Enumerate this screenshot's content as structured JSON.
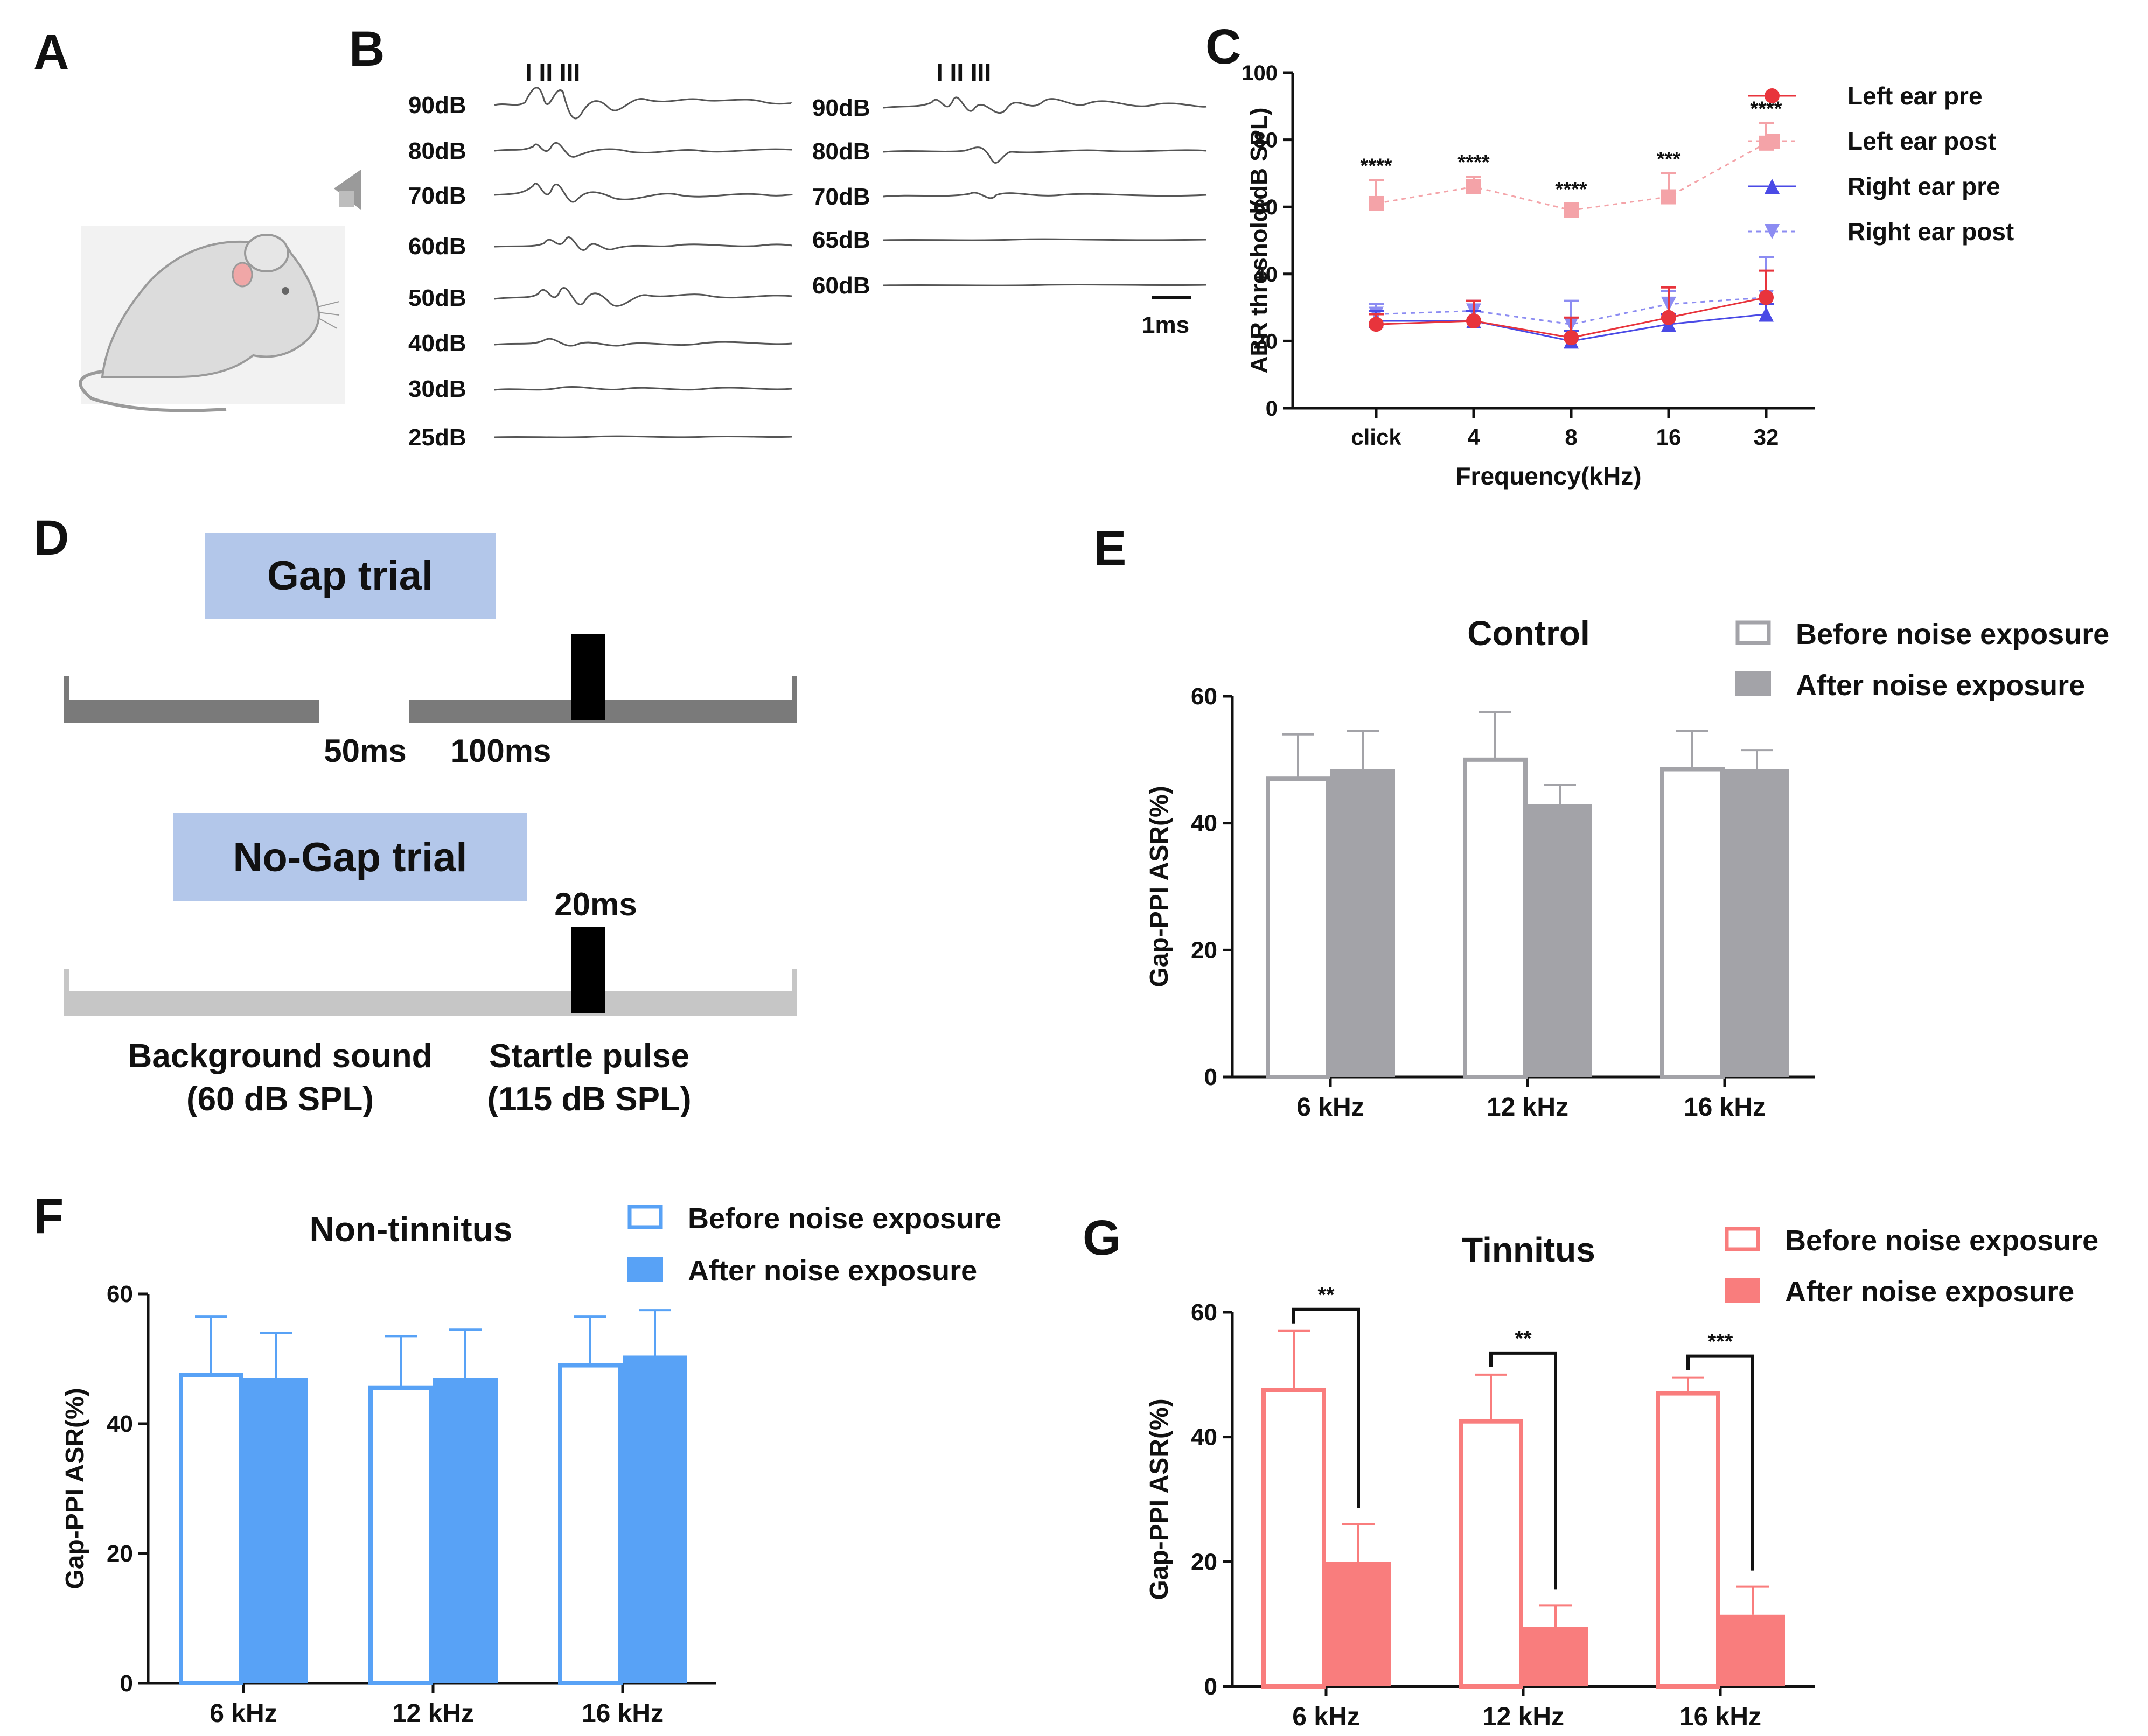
{
  "panel_labels": {
    "a": "A",
    "b": "B",
    "c": "C",
    "d": "D",
    "e": "E",
    "f": "F",
    "g": "G"
  },
  "abr_traces": {
    "peaks_label": "I  II  III",
    "scale_bar_label": "1ms",
    "pre_levels": [
      "90dB",
      "80dB",
      "70dB",
      "60dB",
      "50dB",
      "40dB",
      "30dB",
      "25dB"
    ],
    "post_levels": [
      "90dB",
      "80dB",
      "70dB",
      "65dB",
      "60dB"
    ]
  },
  "gap_paradigm": {
    "gap_trial_label": "Gap trial",
    "gap_duration_label": "50ms",
    "gap_delay_label": "100ms",
    "nogap_trial_label": "No-Gap trial",
    "pulse_duration_label": "20ms",
    "background_label": "Background sound",
    "background_level": "(60 dB SPL)",
    "startle_label": "Startle pulse",
    "startle_level": "(115 dB SPL)"
  },
  "colors": {
    "left_pre": "#e8343c",
    "left_post": "#f4a3a8",
    "right_pre": "#4a4ae6",
    "right_post": "#8c8cf2",
    "control_after": "#a3a3a8",
    "control_before_edge": "#a3a3a8",
    "nontinnitus": "#58a2f6",
    "tinnitus": "#f97d7d",
    "gap_bar_dark": "#7a7a7a",
    "nogap_bar": "#c6c6c6",
    "trial_box": "#b3c7ea"
  },
  "chart_data": [
    {
      "panel": "C",
      "type": "line",
      "title": "",
      "xlabel": "Frequency(kHz)",
      "ylabel": "ABR threshold(dB SPL)",
      "ylim": [
        0,
        100
      ],
      "yticks": [
        0,
        20,
        40,
        60,
        80,
        100
      ],
      "categories": [
        "click",
        "4",
        "8",
        "16",
        "32"
      ],
      "series": [
        {
          "name": "Left ear pre",
          "values": [
            25,
            26,
            21,
            27,
            33
          ],
          "error": [
            3,
            6,
            6,
            9,
            8
          ]
        },
        {
          "name": "Left ear post",
          "values": [
            61,
            66,
            59,
            63,
            79
          ],
          "error": [
            7,
            3,
            2,
            7,
            6
          ]
        },
        {
          "name": "Right ear pre",
          "values": [
            26,
            26,
            20,
            25,
            28
          ],
          "error": [
            3,
            3,
            3,
            3,
            3
          ]
        },
        {
          "name": "Right ear post",
          "values": [
            28,
            29,
            25,
            31,
            33
          ],
          "error": [
            3,
            3,
            7,
            4,
            12
          ]
        }
      ],
      "annotations": [
        "****",
        "****",
        "****",
        "***",
        "****"
      ],
      "legend": "top-right"
    },
    {
      "panel": "E",
      "type": "bar",
      "title": "Control",
      "xlabel": "",
      "ylabel": "Gap-PPI ASR(%)",
      "ylim": [
        0,
        60
      ],
      "yticks": [
        0,
        20,
        40,
        60
      ],
      "categories": [
        "6 kHz",
        "12 kHz",
        "16 kHz"
      ],
      "series": [
        {
          "name": "Before noise exposure",
          "values": [
            47,
            50,
            48.5
          ],
          "error": [
            7,
            7.5,
            6
          ]
        },
        {
          "name": "After noise exposure",
          "values": [
            48.5,
            43,
            48.5
          ],
          "error": [
            6,
            3,
            3
          ]
        }
      ],
      "legend": "top-right"
    },
    {
      "panel": "F",
      "type": "bar",
      "title": "Non-tinnitus",
      "xlabel": "",
      "ylabel": "Gap-PPI ASR(%)",
      "ylim": [
        0,
        60
      ],
      "yticks": [
        0,
        20,
        40,
        60
      ],
      "categories": [
        "6 kHz",
        "12 kHz",
        "16 kHz"
      ],
      "series": [
        {
          "name": "Before noise exposure",
          "values": [
            47.5,
            45.5,
            49
          ],
          "error": [
            9,
            8,
            7.5
          ]
        },
        {
          "name": "After noise exposure",
          "values": [
            47,
            47,
            50.5
          ],
          "error": [
            7,
            7.5,
            7
          ]
        }
      ],
      "legend": "top-right"
    },
    {
      "panel": "G",
      "type": "bar",
      "title": "Tinnitus",
      "xlabel": "",
      "ylabel": "Gap-PPI ASR(%)",
      "ylim": [
        0,
        60
      ],
      "yticks": [
        0,
        20,
        40,
        60
      ],
      "categories": [
        "6 kHz",
        "12 kHz",
        "16 kHz"
      ],
      "series": [
        {
          "name": "Before noise exposure",
          "values": [
            47.5,
            42.5,
            47
          ],
          "error": [
            9.5,
            7.5,
            2.5
          ]
        },
        {
          "name": "After noise exposure",
          "values": [
            20,
            9.5,
            11.5
          ],
          "error": [
            6,
            3.5,
            4.5
          ]
        }
      ],
      "significance": [
        "**",
        "**",
        "***"
      ],
      "legend": "top-right"
    }
  ]
}
